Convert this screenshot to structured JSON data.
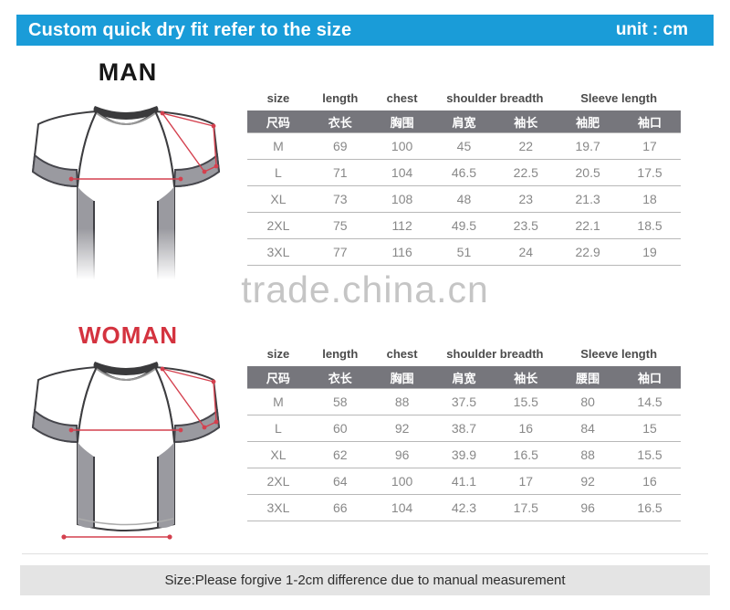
{
  "banner": {
    "title": "Custom quick dry fit refer to the size",
    "unit_label": "unit : cm"
  },
  "watermark": {
    "text": "trade.china.cn"
  },
  "footer": {
    "note": "Size:Please forgive 1-2cm difference due to manual measurement"
  },
  "colors": {
    "banner_bg": "#1a9cd8",
    "table_header_bar": "#76767c",
    "woman_heading_red": "#d4333f",
    "watermark_gray": "#c5c5c5",
    "footer_bg": "#e4e4e4",
    "measure_line_red": "#d4404e",
    "shirt_panel_gray": "#9a9aa0"
  },
  "man_section": {
    "heading": "MAN",
    "table": {
      "english_headers": [
        "size",
        "length",
        "chest",
        "shoulder breadth",
        "Sleeve length"
      ],
      "english_header_spans": [
        1,
        1,
        1,
        2,
        2
      ],
      "chinese_headers": [
        "尺码",
        "衣长",
        "胸围",
        "肩宽",
        "袖长",
        "袖肥",
        "袖口"
      ],
      "rows": [
        [
          "M",
          "69",
          "100",
          "45",
          "22",
          "19.7",
          "17"
        ],
        [
          "L",
          "71",
          "104",
          "46.5",
          "22.5",
          "20.5",
          "17.5"
        ],
        [
          "XL",
          "73",
          "108",
          "48",
          "23",
          "21.3",
          "18"
        ],
        [
          "2XL",
          "75",
          "112",
          "49.5",
          "23.5",
          "22.1",
          "18.5"
        ],
        [
          "3XL",
          "77",
          "116",
          "51",
          "24",
          "22.9",
          "19"
        ]
      ]
    }
  },
  "woman_section": {
    "heading": "WOMAN",
    "table": {
      "english_headers": [
        "size",
        "length",
        "chest",
        "shoulder breadth",
        "Sleeve length"
      ],
      "english_header_spans": [
        1,
        1,
        1,
        2,
        2
      ],
      "chinese_headers": [
        "尺码",
        "衣长",
        "胸围",
        "肩宽",
        "袖长",
        "腰围",
        "袖口"
      ],
      "rows": [
        [
          "M",
          "58",
          "88",
          "37.5",
          "15.5",
          "80",
          "14.5"
        ],
        [
          "L",
          "60",
          "92",
          "38.7",
          "16",
          "84",
          "15"
        ],
        [
          "XL",
          "62",
          "96",
          "39.9",
          "16.5",
          "88",
          "15.5"
        ],
        [
          "2XL",
          "64",
          "100",
          "41.1",
          "17",
          "92",
          "16"
        ],
        [
          "3XL",
          "66",
          "104",
          "42.3",
          "17.5",
          "96",
          "16.5"
        ]
      ]
    }
  }
}
